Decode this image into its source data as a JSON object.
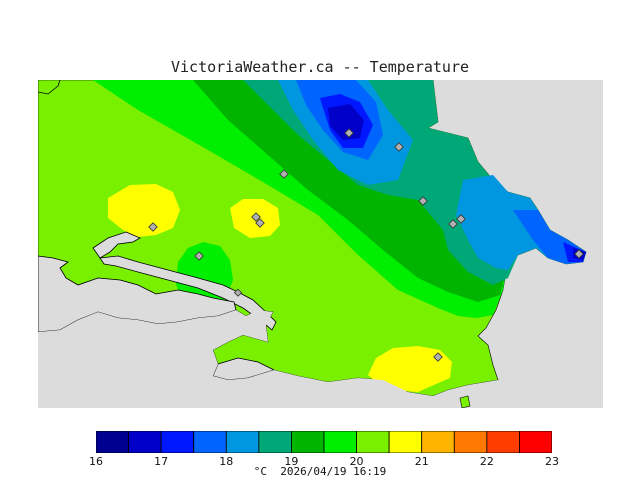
{
  "title": "VictoriaWeather.ca  --  Temperature",
  "footer": {
    "unit": "°C",
    "timestamp": "2026/04/19 16:19"
  },
  "legend": {
    "ticks": [
      "16",
      "17",
      "18",
      "19",
      "20",
      "21",
      "22",
      "23"
    ],
    "bins": [
      {
        "from": 16.0,
        "to": 16.5,
        "color": "#000090"
      },
      {
        "from": 16.5,
        "to": 17.0,
        "color": "#0000c8"
      },
      {
        "from": 17.0,
        "to": 17.5,
        "color": "#0018ff"
      },
      {
        "from": 17.5,
        "to": 18.0,
        "color": "#0064ff"
      },
      {
        "from": 18.0,
        "to": 18.5,
        "color": "#0096e0"
      },
      {
        "from": 18.5,
        "to": 19.0,
        "color": "#00a878"
      },
      {
        "from": 19.0,
        "to": 19.5,
        "color": "#00b400"
      },
      {
        "from": 19.5,
        "to": 20.0,
        "color": "#00ee00"
      },
      {
        "from": 20.0,
        "to": 20.5,
        "color": "#78f000"
      },
      {
        "from": 20.5,
        "to": 21.0,
        "color": "#ffff00"
      },
      {
        "from": 21.0,
        "to": 21.5,
        "color": "#ffb400"
      },
      {
        "from": 21.5,
        "to": 22.0,
        "color": "#ff7800"
      },
      {
        "from": 22.0,
        "to": 22.5,
        "color": "#ff3c00"
      },
      {
        "from": 22.5,
        "to": 23.0,
        "color": "#ff0000"
      }
    ]
  },
  "colors": {
    "water": "#dcdcdc",
    "coastline": "#000000",
    "station_marker": "#b0b0b0"
  },
  "icons": {
    "station": "diamond-station-icon"
  }
}
